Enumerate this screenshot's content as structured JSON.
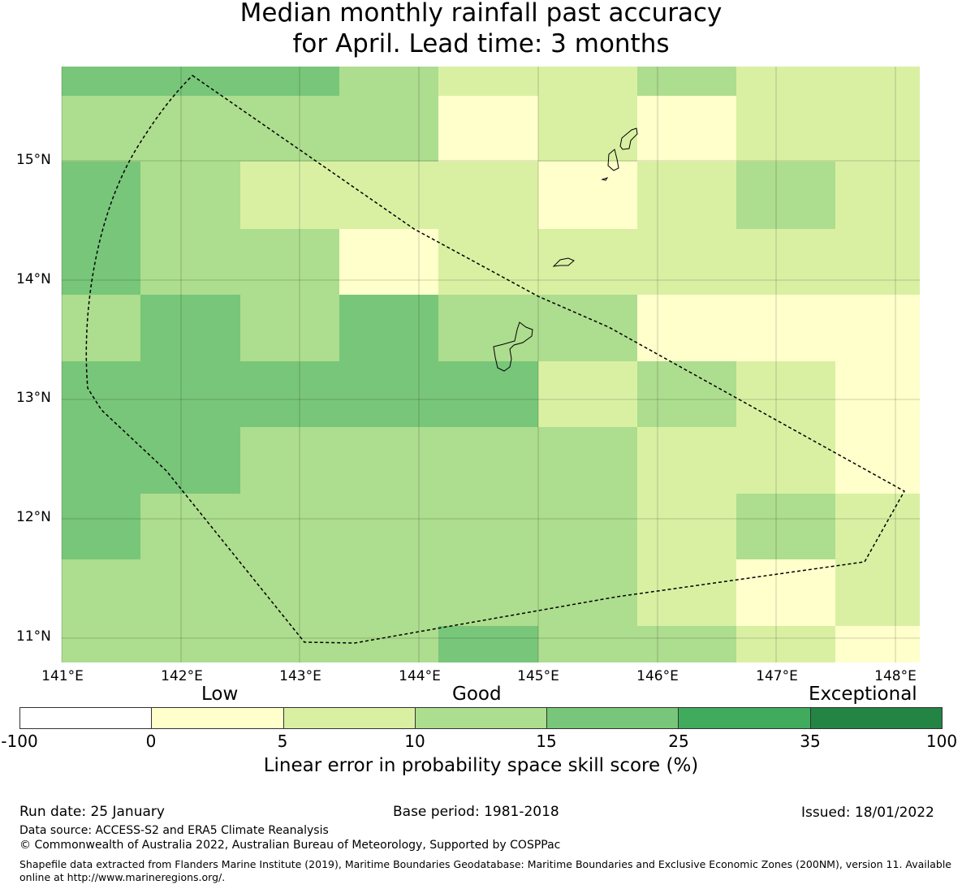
{
  "title": {
    "line1": "Median monthly rainfall past accuracy",
    "line2": "for April. Lead time: 3 months"
  },
  "map": {
    "lat_ticks": [
      "15°N",
      "14°N",
      "13°N",
      "12°N",
      "11°N"
    ],
    "lon_ticks": [
      "141°E",
      "142°E",
      "143°E",
      "144°E",
      "145°E",
      "146°E",
      "147°E",
      "148°E"
    ],
    "grid_row_labels_top_to_bottom": "skill category index per cell (0=0-5,1=5-10,2=10-15,3=15-25)",
    "cells": [
      [
        3,
        3,
        3,
        2,
        1,
        1,
        2,
        1,
        1
      ],
      [
        2,
        2,
        2,
        2,
        0,
        1,
        0,
        1,
        1
      ],
      [
        3,
        2,
        1,
        1,
        1,
        0,
        1,
        2,
        1
      ],
      [
        3,
        2,
        2,
        0,
        1,
        1,
        1,
        1,
        1
      ],
      [
        2,
        3,
        2,
        3,
        2,
        2,
        0,
        0,
        0
      ],
      [
        3,
        3,
        3,
        3,
        3,
        1,
        2,
        1,
        0
      ],
      [
        3,
        3,
        2,
        2,
        2,
        2,
        1,
        1,
        0
      ],
      [
        3,
        2,
        2,
        2,
        2,
        2,
        1,
        2,
        1
      ],
      [
        2,
        2,
        2,
        2,
        2,
        2,
        1,
        0,
        1
      ],
      [
        2,
        2,
        2,
        2,
        3,
        2,
        2,
        1,
        0
      ]
    ],
    "cell_colors": [
      "#ffffcc",
      "#d9f0a3",
      "#addd8e",
      "#78c679"
    ]
  },
  "legend": {
    "category_labels": [
      "Low",
      "Good",
      "Exceptional"
    ],
    "tick_labels": [
      "-100",
      "0",
      "5",
      "10",
      "15",
      "25",
      "35",
      "100"
    ],
    "colors": [
      "#ffffff",
      "#ffffcc",
      "#d9f0a3",
      "#addd8e",
      "#78c679",
      "#41ab5d",
      "#238443"
    ],
    "title": "Linear error in probability space skill score (%)"
  },
  "footer": {
    "run_date": "Run date: 25 January",
    "base_period": "Base period: 1981-2018",
    "issued": "Issued: 18/01/2022",
    "data_source": "Data source: ACCESS-S2 and ERA5 Climate Reanalysis",
    "copyright": "© Commonwealth of Australia 2022, Australian Bureau of Meteorology, Supported by COSPPac",
    "shapefile": "Shapefile data extracted from Flanders Marine Institute (2019), Maritime Boundaries Geodatabase: Maritime Boundaries and Exclusive Economic Zones (200NM), version 11. Available online at http://www.marineregions.org/."
  }
}
